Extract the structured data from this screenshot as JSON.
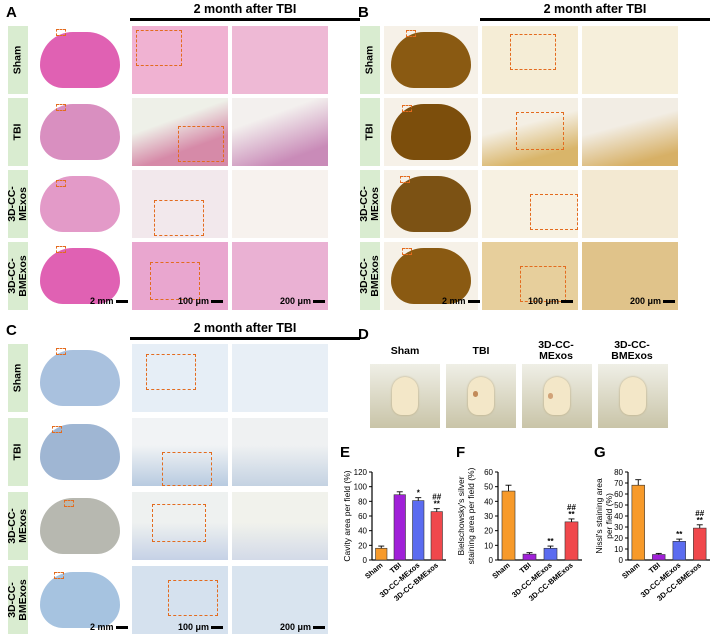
{
  "panels": {
    "A": {
      "letter": "A",
      "title": "2 month after TBI",
      "rows": [
        "Sham",
        "TBI",
        "3D-CC-\nMExos",
        "3D-CC-\nBMExos"
      ],
      "scales": [
        "2 mm",
        "100 μm",
        "200 μm"
      ]
    },
    "B": {
      "letter": "B",
      "title": "2 month after TBI",
      "rows": [
        "Sham",
        "TBI",
        "3D-CC-\nMExos",
        "3D-CC-\nBMExos"
      ],
      "scales": [
        "2 mm",
        "100 μm",
        "200 μm"
      ]
    },
    "C": {
      "letter": "C",
      "title": "2 month after TBI",
      "rows": [
        "Sham",
        "TBI",
        "3D-CC-\nMExos",
        "3D-CC-\nBMExos"
      ],
      "scales": [
        "2 mm",
        "100 μm",
        "200 μm"
      ]
    },
    "D": {
      "letter": "D",
      "labels": [
        "Sham",
        "TBI",
        "3D-CC-\nMExos",
        "3D-CC-\nBMExos"
      ]
    },
    "E": {
      "letter": "E"
    },
    "F": {
      "letter": "F"
    },
    "G": {
      "letter": "G"
    }
  },
  "colors": {
    "sham": "#f79a2a",
    "tbi": "#a020d8",
    "mexos": "#5b6cf0",
    "bmexos": "#f0484c",
    "box": "#e36b1e",
    "hne": "#e79bc4",
    "silver": "#e6c98a",
    "nissl": "#c3d3e6"
  },
  "chart_data": [
    {
      "type": "bar",
      "panel": "E",
      "categories": [
        "Sham",
        "TBI",
        "3D-CC-MExos",
        "3D-CC-BMExos"
      ],
      "values": [
        16,
        89,
        81,
        66
      ],
      "errors": [
        3,
        4,
        4,
        4
      ],
      "ylabel": "Cavity area per field (%)",
      "ylim": [
        0,
        120
      ],
      "yticks": [
        0,
        20,
        40,
        60,
        80,
        100,
        120
      ],
      "annotations": [
        "",
        "",
        "*",
        "**\n##"
      ]
    },
    {
      "type": "bar",
      "panel": "F",
      "categories": [
        "Sham",
        "TBI",
        "3D-CC-MExos",
        "3D-CC-BMExos"
      ],
      "values": [
        47,
        4,
        8,
        26
      ],
      "errors": [
        4,
        1,
        1.5,
        2
      ],
      "ylabel": "Bielschowsky's silver\nstaining area per field (%)",
      "ylim": [
        0,
        60
      ],
      "yticks": [
        0,
        10,
        20,
        30,
        40,
        50,
        60
      ],
      "annotations": [
        "",
        "",
        "**",
        "**\n##"
      ]
    },
    {
      "type": "bar",
      "panel": "G",
      "categories": [
        "Sham",
        "TBI",
        "3D-CC-MExos",
        "3D-CC-BMExos"
      ],
      "values": [
        68,
        5,
        17,
        29
      ],
      "errors": [
        5,
        1,
        2,
        3
      ],
      "ylabel": "Nissl's staining area\nper field (%)",
      "ylim": [
        0,
        80
      ],
      "yticks": [
        0,
        10,
        20,
        30,
        40,
        50,
        60,
        70,
        80
      ],
      "annotations": [
        "",
        "",
        "**",
        "**\n##"
      ]
    }
  ]
}
